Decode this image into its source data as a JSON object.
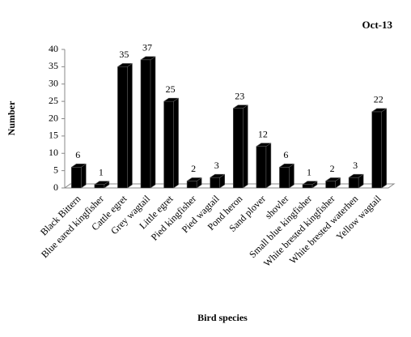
{
  "chart_data": {
    "type": "bar",
    "title": "Oct-13",
    "x_label": "Bird species",
    "y_label": "Number",
    "categories": [
      "Black Bittern",
      "Blue eared kingfisher",
      "Cattle egret",
      "Grey wagtail",
      "Little egret",
      "Pied kingfisher",
      "Pied wagtail",
      "Pond heron",
      "Sand plover",
      "shovler",
      "Small blue kingfisher",
      "White brested  kingfisher",
      "White brested  waterhen",
      "Yellow wagtail"
    ],
    "values": [
      6,
      1,
      35,
      37,
      25,
      2,
      3,
      23,
      12,
      6,
      1,
      2,
      3,
      22
    ],
    "color": "#000000",
    "ylim": [
      0,
      40
    ],
    "yticks": [
      0,
      5,
      10,
      15,
      20,
      25,
      30,
      35,
      40
    ]
  }
}
